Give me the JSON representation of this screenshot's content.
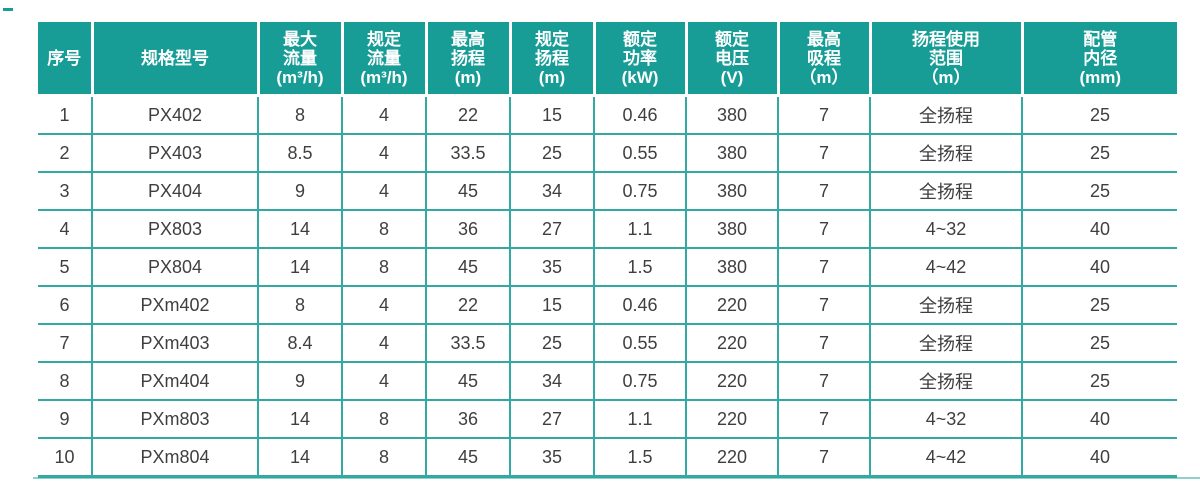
{
  "page": {
    "accent_color": "#179C96",
    "grid_line_color": "#33A9A3",
    "body_text_color": "#3F3F3F",
    "header_text_color": "#FFFFFF"
  },
  "table": {
    "columns": [
      {
        "id": "serial-number",
        "lines": [
          "序号"
        ]
      },
      {
        "id": "model",
        "lines": [
          "规格型号"
        ]
      },
      {
        "id": "max-flow",
        "lines": [
          "最大",
          "流量",
          "(m³/h)"
        ]
      },
      {
        "id": "rated-flow",
        "lines": [
          "规定",
          "流量",
          "(m³/h)"
        ]
      },
      {
        "id": "max-head",
        "lines": [
          "最高",
          "扬程",
          "(m)"
        ]
      },
      {
        "id": "rated-head",
        "lines": [
          "规定",
          "扬程",
          "(m)"
        ]
      },
      {
        "id": "rated-power",
        "lines": [
          "额定",
          "功率",
          "(kW)"
        ]
      },
      {
        "id": "rated-voltage",
        "lines": [
          "额定",
          "电压",
          "(V)"
        ]
      },
      {
        "id": "max-suction",
        "lines": [
          "最高",
          "吸程",
          "（m）"
        ]
      },
      {
        "id": "head-range",
        "lines": [
          "扬程使用",
          "范围",
          "（m）"
        ]
      },
      {
        "id": "pipe-diameter",
        "lines": [
          "配管",
          "内径",
          "(mm)"
        ]
      }
    ],
    "rows": [
      [
        "1",
        "PX402",
        "8",
        "4",
        "22",
        "15",
        "0.46",
        "380",
        "7",
        "全扬程",
        "25"
      ],
      [
        "2",
        "PX403",
        "8.5",
        "4",
        "33.5",
        "25",
        "0.55",
        "380",
        "7",
        "全扬程",
        "25"
      ],
      [
        "3",
        "PX404",
        "9",
        "4",
        "45",
        "34",
        "0.75",
        "380",
        "7",
        "全扬程",
        "25"
      ],
      [
        "4",
        "PX803",
        "14",
        "8",
        "36",
        "27",
        "1.1",
        "380",
        "7",
        "4~32",
        "40"
      ],
      [
        "5",
        "PX804",
        "14",
        "8",
        "45",
        "35",
        "1.5",
        "380",
        "7",
        "4~42",
        "40"
      ],
      [
        "6",
        "PXm402",
        "8",
        "4",
        "22",
        "15",
        "0.46",
        "220",
        "7",
        "全扬程",
        "25"
      ],
      [
        "7",
        "PXm403",
        "8.4",
        "4",
        "33.5",
        "25",
        "0.55",
        "220",
        "7",
        "全扬程",
        "25"
      ],
      [
        "8",
        "PXm404",
        "9",
        "4",
        "45",
        "34",
        "0.75",
        "220",
        "7",
        "全扬程",
        "25"
      ],
      [
        "9",
        "PXm803",
        "14",
        "8",
        "36",
        "27",
        "1.1",
        "220",
        "7",
        "4~32",
        "40"
      ],
      [
        "10",
        "PXm804",
        "14",
        "8",
        "45",
        "35",
        "1.5",
        "220",
        "7",
        "4~42",
        "40"
      ]
    ]
  }
}
